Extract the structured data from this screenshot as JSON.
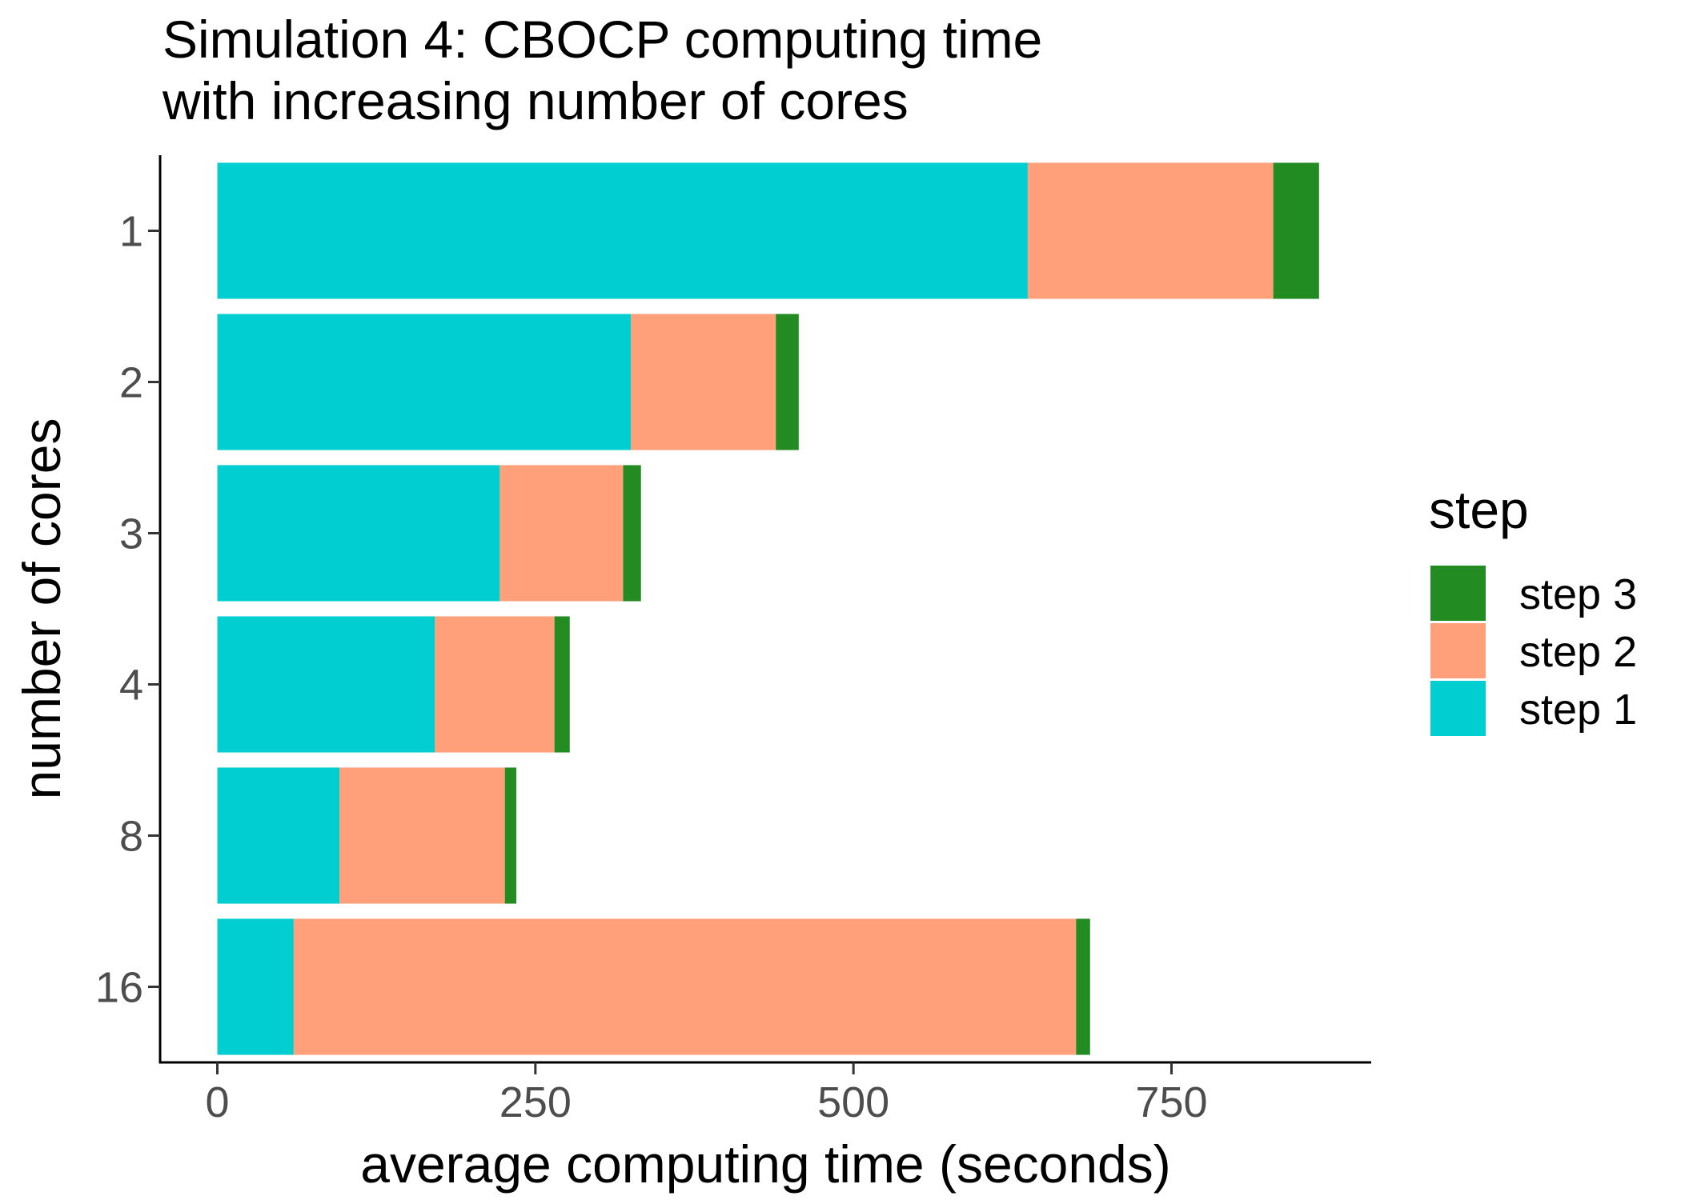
{
  "chart_data": {
    "type": "bar",
    "orientation": "horizontal",
    "stacked": true,
    "title_lines": [
      "Simulation 4: CBOCP computing time",
      "with increasing number of cores"
    ],
    "xlabel": "average computing time (seconds)",
    "ylabel": "number of cores",
    "xlim": [
      -45,
      907
    ],
    "xticks": [
      0,
      250,
      500,
      750
    ],
    "xtick_labels": [
      "0",
      "250",
      "500",
      "750"
    ],
    "categories": [
      "1",
      "2",
      "3",
      "4",
      "8",
      "16"
    ],
    "series": [
      {
        "name": "step 1",
        "color": "#00CED1",
        "values": [
          637,
          325,
          222,
          171,
          96,
          60
        ]
      },
      {
        "name": "step 2",
        "color": "#FFA07A",
        "values": [
          193,
          114,
          97,
          94,
          130,
          615
        ]
      },
      {
        "name": "step 3",
        "color": "#228B22",
        "values": [
          36,
          18,
          14,
          12,
          9,
          11
        ]
      }
    ],
    "legend": {
      "title": "step",
      "position": "right",
      "order": [
        "step 3",
        "step 2",
        "step 1"
      ]
    },
    "grid": false
  }
}
